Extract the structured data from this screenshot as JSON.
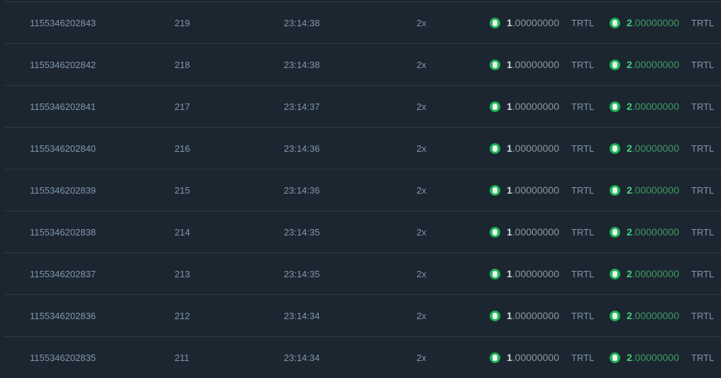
{
  "accent_color": "#1fb457",
  "rows": [
    {
      "id": "1155346202843",
      "num": "219",
      "time": "23:14:38",
      "multiplier": "2x",
      "bet_int": "1",
      "bet_dec": ".00000000",
      "bet_currency": "TRTL",
      "payout_int": "2",
      "payout_dec": ".00000000",
      "payout_currency": "TRTL"
    },
    {
      "id": "1155346202842",
      "num": "218",
      "time": "23:14:38",
      "multiplier": "2x",
      "bet_int": "1",
      "bet_dec": ".00000000",
      "bet_currency": "TRTL",
      "payout_int": "2",
      "payout_dec": ".00000000",
      "payout_currency": "TRTL"
    },
    {
      "id": "1155346202841",
      "num": "217",
      "time": "23:14:37",
      "multiplier": "2x",
      "bet_int": "1",
      "bet_dec": ".00000000",
      "bet_currency": "TRTL",
      "payout_int": "2",
      "payout_dec": ".00000000",
      "payout_currency": "TRTL"
    },
    {
      "id": "1155346202840",
      "num": "216",
      "time": "23:14:36",
      "multiplier": "2x",
      "bet_int": "1",
      "bet_dec": ".00000000",
      "bet_currency": "TRTL",
      "payout_int": "2",
      "payout_dec": ".00000000",
      "payout_currency": "TRTL"
    },
    {
      "id": "1155346202839",
      "num": "215",
      "time": "23:14:36",
      "multiplier": "2x",
      "bet_int": "1",
      "bet_dec": ".00000000",
      "bet_currency": "TRTL",
      "payout_int": "2",
      "payout_dec": ".00000000",
      "payout_currency": "TRTL"
    },
    {
      "id": "1155346202838",
      "num": "214",
      "time": "23:14:35",
      "multiplier": "2x",
      "bet_int": "1",
      "bet_dec": ".00000000",
      "bet_currency": "TRTL",
      "payout_int": "2",
      "payout_dec": ".00000000",
      "payout_currency": "TRTL"
    },
    {
      "id": "1155346202837",
      "num": "213",
      "time": "23:14:35",
      "multiplier": "2x",
      "bet_int": "1",
      "bet_dec": ".00000000",
      "bet_currency": "TRTL",
      "payout_int": "2",
      "payout_dec": ".00000000",
      "payout_currency": "TRTL"
    },
    {
      "id": "1155346202836",
      "num": "212",
      "time": "23:14:34",
      "multiplier": "2x",
      "bet_int": "1",
      "bet_dec": ".00000000",
      "bet_currency": "TRTL",
      "payout_int": "2",
      "payout_dec": ".00000000",
      "payout_currency": "TRTL"
    },
    {
      "id": "1155346202835",
      "num": "211",
      "time": "23:14:34",
      "multiplier": "2x",
      "bet_int": "1",
      "bet_dec": ".00000000",
      "bet_currency": "TRTL",
      "payout_int": "2",
      "payout_dec": ".00000000",
      "payout_currency": "TRTL"
    }
  ]
}
